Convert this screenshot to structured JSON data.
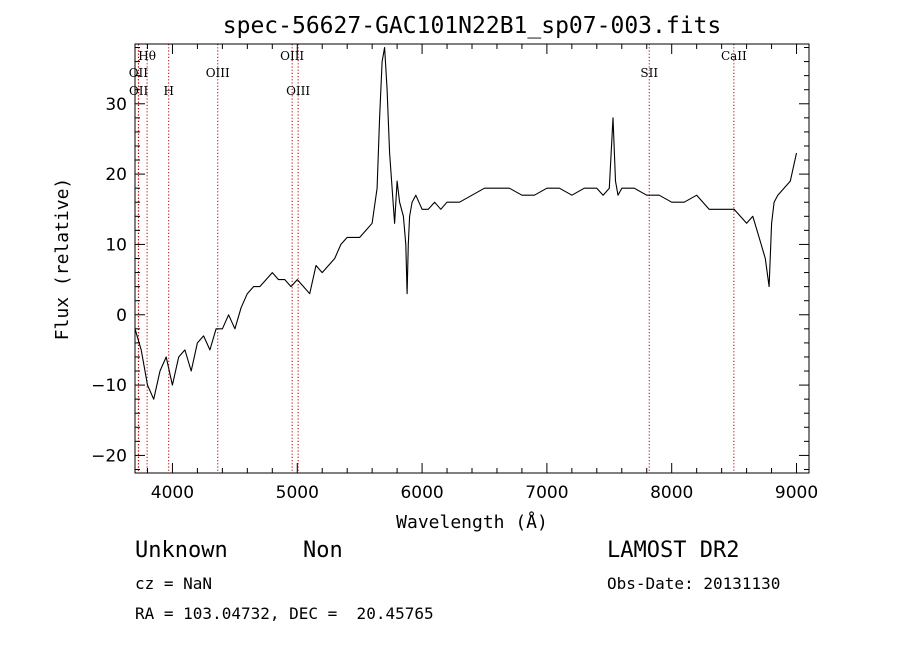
{
  "chart_data": {
    "type": "line",
    "title": "spec-56627-GAC101N22B1_sp07-003.fits",
    "xlabel": "Wavelength (Å)",
    "ylabel": "Flux (relative)",
    "xlim": [
      3700,
      9100
    ],
    "ylim": [
      -22.5,
      38.5
    ],
    "xticks": [
      4000,
      5000,
      6000,
      7000,
      8000,
      9000
    ],
    "yticks": [
      -20,
      -10,
      0,
      10,
      20,
      30
    ],
    "grid": false,
    "series": [
      {
        "x": [
          3700,
          3750,
          3800,
          3850,
          3900,
          3950,
          4000,
          4050,
          4100,
          4150,
          4200,
          4250,
          4300,
          4350,
          4400,
          4450,
          4500,
          4550,
          4600,
          4650,
          4700,
          4750,
          4800,
          4850,
          4900,
          4950,
          5000,
          5050,
          5100,
          5150,
          5200,
          5250,
          5300,
          5350,
          5400,
          5450,
          5500,
          5550,
          5600,
          5640,
          5660,
          5680,
          5700,
          5720,
          5740,
          5760,
          5780,
          5800,
          5820,
          5850,
          5870,
          5880,
          5890,
          5900,
          5920,
          5950,
          6000,
          6050,
          6100,
          6150,
          6200,
          6300,
          6400,
          6500,
          6600,
          6700,
          6800,
          6900,
          7000,
          7100,
          7200,
          7300,
          7400,
          7450,
          7500,
          7530,
          7550,
          7570,
          7600,
          7700,
          7800,
          7900,
          8000,
          8100,
          8200,
          8300,
          8400,
          8500,
          8600,
          8650,
          8700,
          8750,
          8780,
          8800,
          8820,
          8850,
          8900,
          8950,
          9000
        ],
        "y": [
          -2,
          -5,
          -10,
          -12,
          -8,
          -6,
          -10,
          -6,
          -5,
          -8,
          -4,
          -3,
          -5,
          -2,
          -2,
          0,
          -2,
          1,
          3,
          4,
          4,
          5,
          6,
          5,
          5,
          4,
          5,
          4,
          3,
          7,
          6,
          7,
          8,
          10,
          11,
          11,
          11,
          12,
          13,
          18,
          28,
          36,
          38,
          32,
          23,
          18,
          13,
          19,
          16,
          14,
          10,
          3,
          10,
          14,
          16,
          17,
          15,
          15,
          16,
          15,
          16,
          16,
          17,
          18,
          18,
          18,
          17,
          17,
          18,
          18,
          17,
          18,
          18,
          17,
          18,
          28,
          19,
          17,
          18,
          18,
          17,
          17,
          16,
          16,
          17,
          15,
          15,
          15,
          13,
          14,
          11,
          8,
          4,
          13,
          16,
          17,
          18,
          19,
          23
        ]
      }
    ],
    "line_markers": [
      {
        "label": "Hθ",
        "x": 3797,
        "row": 1
      },
      {
        "label": "OII",
        "x": 3727,
        "row": 2
      },
      {
        "label": "OII",
        "x": 3729,
        "row": 3
      },
      {
        "label": "H",
        "x": 3970,
        "row": 3
      },
      {
        "label": "OIII",
        "x": 4363,
        "row": 2
      },
      {
        "label": "OIII",
        "x": 4959,
        "row": 1
      },
      {
        "label": "OIII",
        "x": 5007,
        "row": 3
      },
      {
        "label": "SII",
        "x": 7820,
        "row": 2
      },
      {
        "label": "CaII",
        "x": 8498,
        "row": 1
      }
    ]
  },
  "footer": {
    "object_class": "Unknown",
    "subclass": "Non",
    "survey": "LAMOST DR2",
    "redshift_text": "cz = NaN",
    "obs_date_text": "Obs-Date: 20131130",
    "coords_text": "RA = 103.04732, DEC =  20.45765"
  }
}
